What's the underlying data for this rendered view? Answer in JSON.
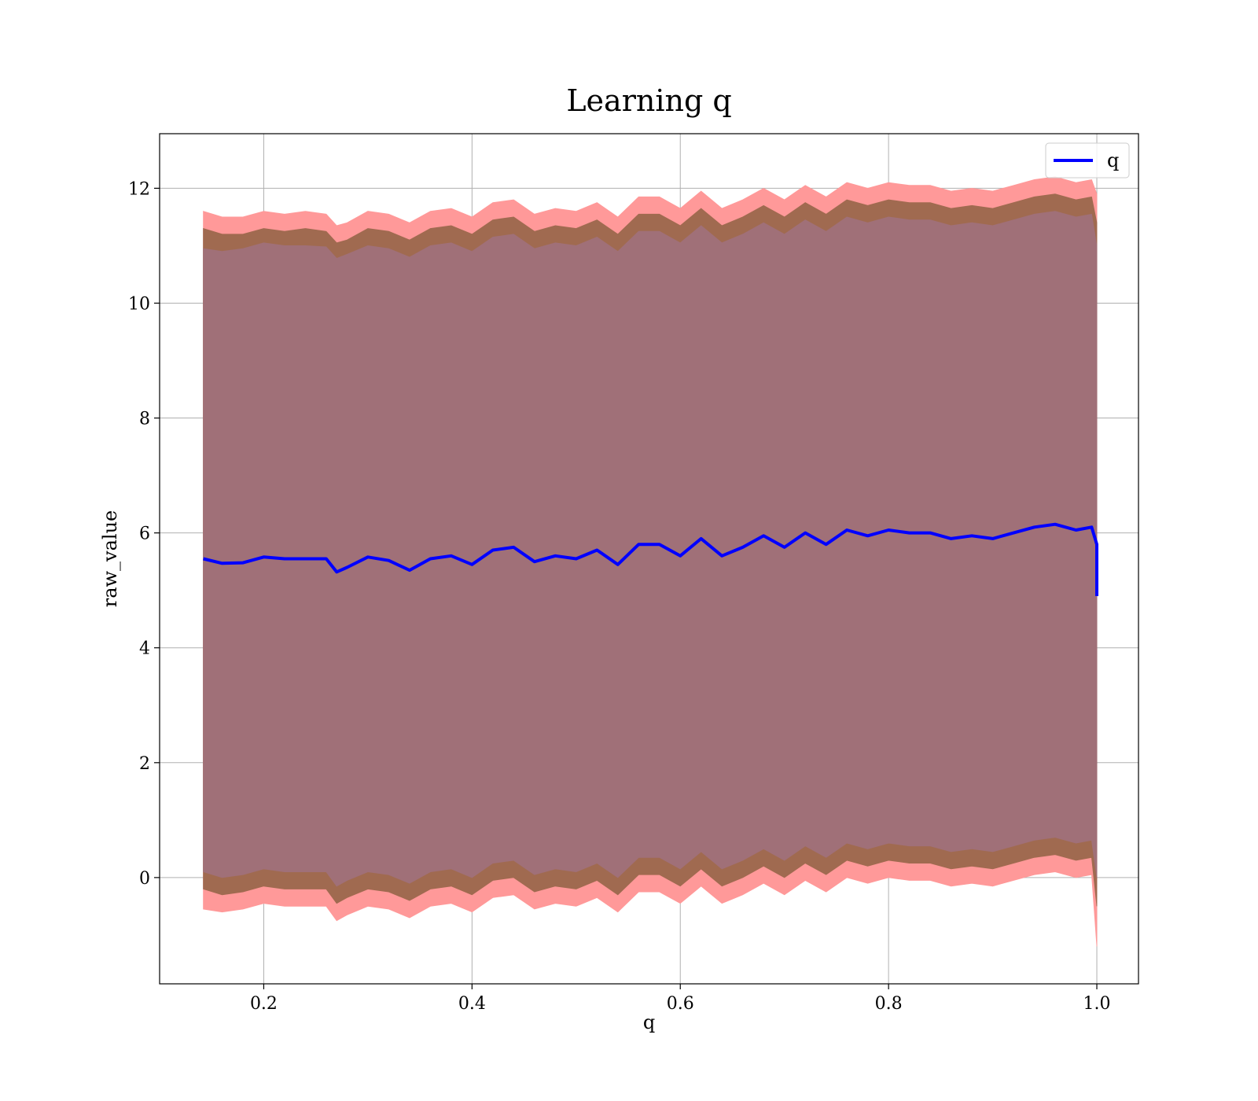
{
  "chart_data": {
    "type": "line",
    "title": "Learning q",
    "xlabel": "q",
    "ylabel": "raw_value",
    "xlim": [
      0.1,
      1.04
    ],
    "ylim": [
      -1.85,
      12.95
    ],
    "xticks": [
      0.2,
      0.4,
      0.6,
      0.8,
      1.0
    ],
    "xtick_labels": [
      "0.2",
      "0.4",
      "0.6",
      "0.8",
      "1.0"
    ],
    "yticks": [
      0,
      2,
      4,
      6,
      8,
      10,
      12
    ],
    "ytick_labels": [
      "0",
      "2",
      "4",
      "6",
      "8",
      "10",
      "12"
    ],
    "grid": true,
    "legend_position": "top-right",
    "series": [
      {
        "name": "q",
        "color": "#0000ff",
        "x": [
          0.142,
          0.16,
          0.18,
          0.2,
          0.22,
          0.24,
          0.26,
          0.27,
          0.28,
          0.3,
          0.32,
          0.34,
          0.36,
          0.38,
          0.4,
          0.42,
          0.44,
          0.46,
          0.48,
          0.5,
          0.52,
          0.54,
          0.56,
          0.58,
          0.6,
          0.62,
          0.64,
          0.66,
          0.68,
          0.7,
          0.72,
          0.74,
          0.76,
          0.78,
          0.8,
          0.82,
          0.84,
          0.86,
          0.88,
          0.9,
          0.92,
          0.94,
          0.96,
          0.98,
          0.995,
          1.0,
          1.0
        ],
        "y": [
          5.55,
          5.47,
          5.48,
          5.58,
          5.55,
          5.55,
          5.55,
          5.32,
          5.4,
          5.58,
          5.52,
          5.35,
          5.55,
          5.6,
          5.45,
          5.7,
          5.75,
          5.5,
          5.6,
          5.55,
          5.7,
          5.45,
          5.8,
          5.8,
          5.6,
          5.9,
          5.6,
          5.75,
          5.95,
          5.75,
          6.0,
          5.8,
          6.05,
          5.95,
          6.05,
          6.0,
          6.0,
          5.9,
          5.95,
          5.9,
          6.0,
          6.1,
          6.15,
          6.05,
          6.1,
          5.8,
          4.9
        ]
      }
    ],
    "bands": [
      {
        "label": "outer",
        "color": "#ff9999",
        "x": [
          0.142,
          0.16,
          0.18,
          0.2,
          0.22,
          0.24,
          0.26,
          0.27,
          0.28,
          0.3,
          0.32,
          0.34,
          0.36,
          0.38,
          0.4,
          0.42,
          0.44,
          0.46,
          0.48,
          0.5,
          0.52,
          0.54,
          0.56,
          0.58,
          0.6,
          0.62,
          0.64,
          0.66,
          0.68,
          0.7,
          0.72,
          0.74,
          0.76,
          0.78,
          0.8,
          0.82,
          0.84,
          0.86,
          0.88,
          0.9,
          0.92,
          0.94,
          0.96,
          0.98,
          0.995,
          1.0
        ],
        "upper": [
          11.6,
          11.5,
          11.5,
          11.6,
          11.55,
          11.6,
          11.55,
          11.35,
          11.4,
          11.6,
          11.55,
          11.4,
          11.6,
          11.65,
          11.5,
          11.75,
          11.8,
          11.55,
          11.65,
          11.6,
          11.75,
          11.5,
          11.85,
          11.85,
          11.65,
          11.95,
          11.65,
          11.8,
          12.0,
          11.8,
          12.05,
          11.85,
          12.1,
          12.0,
          12.1,
          12.05,
          12.05,
          11.95,
          12.0,
          11.95,
          12.05,
          12.15,
          12.2,
          12.1,
          12.15,
          11.9
        ],
        "lower": [
          -0.55,
          -0.6,
          -0.55,
          -0.45,
          -0.5,
          -0.5,
          -0.5,
          -0.75,
          -0.65,
          -0.5,
          -0.55,
          -0.7,
          -0.5,
          -0.45,
          -0.6,
          -0.35,
          -0.3,
          -0.55,
          -0.45,
          -0.5,
          -0.35,
          -0.6,
          -0.25,
          -0.25,
          -0.45,
          -0.15,
          -0.45,
          -0.3,
          -0.1,
          -0.3,
          -0.05,
          -0.25,
          0.0,
          -0.1,
          0.0,
          -0.05,
          -0.05,
          -0.15,
          -0.1,
          -0.15,
          -0.05,
          0.05,
          0.1,
          0.0,
          0.05,
          -1.2
        ]
      },
      {
        "label": "middle",
        "color": "#a06a50",
        "x": [
          0.142,
          0.16,
          0.18,
          0.2,
          0.22,
          0.24,
          0.26,
          0.27,
          0.28,
          0.3,
          0.32,
          0.34,
          0.36,
          0.38,
          0.4,
          0.42,
          0.44,
          0.46,
          0.48,
          0.5,
          0.52,
          0.54,
          0.56,
          0.58,
          0.6,
          0.62,
          0.64,
          0.66,
          0.68,
          0.7,
          0.72,
          0.74,
          0.76,
          0.78,
          0.8,
          0.82,
          0.84,
          0.86,
          0.88,
          0.9,
          0.92,
          0.94,
          0.96,
          0.98,
          0.995,
          1.0
        ],
        "upper": [
          11.3,
          11.2,
          11.2,
          11.3,
          11.25,
          11.3,
          11.25,
          11.05,
          11.1,
          11.3,
          11.25,
          11.1,
          11.3,
          11.35,
          11.2,
          11.45,
          11.5,
          11.25,
          11.35,
          11.3,
          11.45,
          11.2,
          11.55,
          11.55,
          11.35,
          11.65,
          11.35,
          11.5,
          11.7,
          11.5,
          11.75,
          11.55,
          11.8,
          11.7,
          11.8,
          11.75,
          11.75,
          11.65,
          11.7,
          11.65,
          11.75,
          11.85,
          11.9,
          11.8,
          11.85,
          11.4
        ],
        "lower": [
          -0.2,
          -0.3,
          -0.25,
          -0.15,
          -0.2,
          -0.2,
          -0.2,
          -0.45,
          -0.35,
          -0.2,
          -0.25,
          -0.4,
          -0.2,
          -0.15,
          -0.3,
          -0.05,
          0.0,
          -0.25,
          -0.15,
          -0.2,
          -0.05,
          -0.3,
          0.05,
          0.05,
          -0.15,
          0.15,
          -0.15,
          0.0,
          0.2,
          0.0,
          0.25,
          0.05,
          0.3,
          0.2,
          0.3,
          0.25,
          0.25,
          0.15,
          0.2,
          0.15,
          0.25,
          0.35,
          0.4,
          0.3,
          0.35,
          -0.5
        ]
      },
      {
        "label": "inner",
        "color": "#a07078",
        "x": [
          0.142,
          0.16,
          0.18,
          0.2,
          0.22,
          0.24,
          0.26,
          0.27,
          0.28,
          0.3,
          0.32,
          0.34,
          0.36,
          0.38,
          0.4,
          0.42,
          0.44,
          0.46,
          0.48,
          0.5,
          0.52,
          0.54,
          0.56,
          0.58,
          0.6,
          0.62,
          0.64,
          0.66,
          0.68,
          0.7,
          0.72,
          0.74,
          0.76,
          0.78,
          0.8,
          0.82,
          0.84,
          0.86,
          0.88,
          0.9,
          0.92,
          0.94,
          0.96,
          0.98,
          0.995,
          1.0
        ],
        "upper": [
          10.95,
          10.9,
          10.95,
          11.05,
          11.0,
          11.0,
          10.98,
          10.78,
          10.85,
          11.0,
          10.95,
          10.8,
          11.0,
          11.05,
          10.9,
          11.15,
          11.2,
          10.95,
          11.05,
          11.0,
          11.15,
          10.9,
          11.25,
          11.25,
          11.05,
          11.35,
          11.05,
          11.2,
          11.4,
          11.2,
          11.45,
          11.25,
          11.5,
          11.4,
          11.5,
          11.45,
          11.45,
          11.35,
          11.4,
          11.35,
          11.45,
          11.55,
          11.6,
          11.5,
          11.55,
          11.0
        ],
        "lower": [
          0.1,
          0.0,
          0.05,
          0.15,
          0.1,
          0.1,
          0.1,
          -0.15,
          -0.05,
          0.1,
          0.05,
          -0.1,
          0.1,
          0.15,
          0.0,
          0.25,
          0.3,
          0.05,
          0.15,
          0.1,
          0.25,
          0.0,
          0.35,
          0.35,
          0.15,
          0.45,
          0.15,
          0.3,
          0.5,
          0.3,
          0.55,
          0.35,
          0.6,
          0.5,
          0.6,
          0.55,
          0.55,
          0.45,
          0.5,
          0.45,
          0.55,
          0.65,
          0.7,
          0.6,
          0.65,
          0.0
        ]
      }
    ]
  },
  "legend": {
    "items": [
      {
        "label": "q",
        "color": "#0000ff"
      }
    ]
  },
  "colors": {
    "grid": "#b0b0b0",
    "axes": "#000000",
    "background": "#ffffff"
  }
}
